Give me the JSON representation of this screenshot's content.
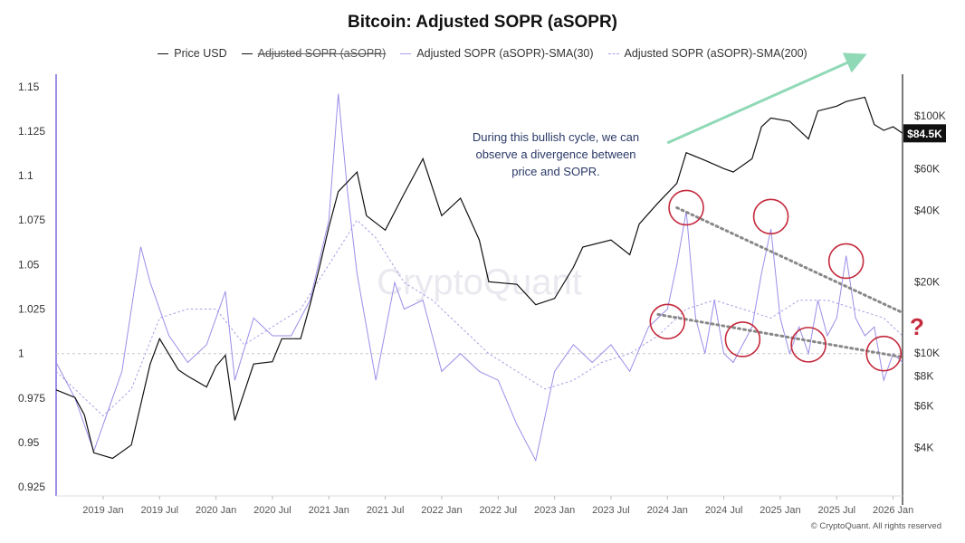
{
  "chart_data": {
    "type": "line",
    "title": "Bitcoin: Adjusted SOPR (aSOPR)",
    "legend": [
      {
        "name": "Price USD",
        "style": "solid-black",
        "struck": false
      },
      {
        "name": "Adjusted SOPR (aSOPR)",
        "style": "solid-black",
        "struck": true
      },
      {
        "name": "Adjusted SOPR (aSOPR)-SMA(30)",
        "style": "solid-lavender",
        "struck": false
      },
      {
        "name": "Adjusted SOPR (aSOPR)-SMA(200)",
        "style": "dashed-lavender",
        "struck": false
      }
    ],
    "x_ticks": [
      "2019 Jan",
      "2019 Jul",
      "2020 Jan",
      "2020 Jul",
      "2021 Jan",
      "2021 Jul",
      "2022 Jan",
      "2022 Jul",
      "2023 Jan",
      "2023 Jul",
      "2024 Jan",
      "2024 Jul",
      "2025 Jan",
      "2025 Jul",
      "2026 Jan"
    ],
    "x_range": [
      "2018-08",
      "2026-02"
    ],
    "y_left_ticks": [
      1.15,
      1.125,
      1.1,
      1.075,
      1.05,
      1.025,
      1,
      0.975,
      0.95,
      0.925
    ],
    "y_left_tick_labels": [
      "1.15",
      "1.125",
      "1.1",
      "1.075",
      "1.05",
      "1.025",
      "1",
      "0.975",
      "0.95",
      "0.925"
    ],
    "y_left_range": [
      0.92,
      1.157
    ],
    "y_right_ticks": [
      100000,
      60000,
      40000,
      20000,
      10000,
      8000,
      6000,
      4000
    ],
    "y_right_tick_labels": [
      "$100K",
      "$60K",
      "$40K",
      "$20K",
      "$10K",
      "$8K",
      "$6K",
      "$4K"
    ],
    "y_right_scale": "log",
    "y_right_range": [
      2500,
      150000
    ],
    "current_price_label": "$84.5K",
    "current_price": 84500,
    "reference_line": 1,
    "series": [
      {
        "name": "Price USD",
        "axis": "right",
        "color": "#111111",
        "x": [
          "2018-08",
          "2018-10",
          "2018-11",
          "2018-12",
          "2019-02",
          "2019-04",
          "2019-06",
          "2019-07",
          "2019-09",
          "2019-10",
          "2019-12",
          "2020-01",
          "2020-02",
          "2020-03",
          "2020-05",
          "2020-07",
          "2020-08",
          "2020-10",
          "2020-11",
          "2020-12",
          "2021-01",
          "2021-02",
          "2021-04",
          "2021-05",
          "2021-07",
          "2021-09",
          "2021-11",
          "2022-01",
          "2022-03",
          "2022-05",
          "2022-06",
          "2022-09",
          "2022-11",
          "2023-01",
          "2023-03",
          "2023-04",
          "2023-07",
          "2023-09",
          "2023-10",
          "2023-12",
          "2024-02",
          "2024-03",
          "2024-05",
          "2024-07",
          "2024-08",
          "2024-10",
          "2024-11",
          "2024-12",
          "2025-02",
          "2025-04",
          "2025-05",
          "2025-07",
          "2025-08",
          "2025-10",
          "2025-11",
          "2025-12",
          "2026-01",
          "2026-02"
        ],
        "values": [
          7000,
          6500,
          5500,
          3800,
          3600,
          4100,
          9000,
          11500,
          8500,
          8000,
          7200,
          8800,
          9800,
          5200,
          9000,
          9200,
          11500,
          11500,
          16000,
          23000,
          34000,
          48000,
          58000,
          38000,
          33000,
          47000,
          66000,
          38000,
          45000,
          30000,
          20000,
          19500,
          16000,
          17000,
          23000,
          28000,
          30000,
          26000,
          35000,
          43000,
          52000,
          70000,
          65000,
          60000,
          58000,
          66000,
          90000,
          98000,
          95000,
          80000,
          105000,
          110000,
          115000,
          120000,
          92000,
          87000,
          90000,
          84500
        ]
      },
      {
        "name": "Adjusted SOPR (aSOPR)-SMA(30)",
        "axis": "left",
        "color": "#9a8ee8",
        "x": [
          "2018-08",
          "2018-10",
          "2018-12",
          "2019-01",
          "2019-03",
          "2019-05",
          "2019-06",
          "2019-08",
          "2019-10",
          "2019-12",
          "2020-02",
          "2020-03",
          "2020-05",
          "2020-07",
          "2020-09",
          "2020-11",
          "2021-01",
          "2021-02",
          "2021-03",
          "2021-04",
          "2021-06",
          "2021-08",
          "2021-09",
          "2021-11",
          "2022-01",
          "2022-03",
          "2022-05",
          "2022-07",
          "2022-09",
          "2022-11",
          "2023-01",
          "2023-03",
          "2023-05",
          "2023-07",
          "2023-09",
          "2023-11",
          "2024-01",
          "2024-02",
          "2024-03",
          "2024-04",
          "2024-05",
          "2024-06",
          "2024-07",
          "2024-08",
          "2024-09",
          "2024-10",
          "2024-11",
          "2024-12",
          "2025-01",
          "2025-02",
          "2025-03",
          "2025-04",
          "2025-05",
          "2025-06",
          "2025-07",
          "2025-08",
          "2025-09",
          "2025-10",
          "2025-11",
          "2025-12",
          "2026-01",
          "2026-02"
        ],
        "values": [
          0.995,
          0.975,
          0.945,
          0.96,
          0.99,
          1.06,
          1.04,
          1.01,
          0.995,
          1.005,
          1.035,
          0.985,
          1.02,
          1.01,
          1.01,
          1.03,
          1.075,
          1.146,
          1.09,
          1.045,
          0.985,
          1.04,
          1.025,
          1.03,
          0.99,
          1.0,
          0.99,
          0.985,
          0.96,
          0.94,
          0.99,
          1.005,
          0.995,
          1.005,
          0.99,
          1.015,
          1.025,
          1.05,
          1.08,
          1.02,
          1.0,
          1.03,
          1.0,
          0.995,
          1.005,
          1.015,
          1.045,
          1.07,
          1.02,
          1.0,
          1.015,
          1.0,
          1.03,
          1.01,
          1.02,
          1.055,
          1.02,
          1.01,
          1.015,
          0.985,
          1.0,
          0.995
        ]
      },
      {
        "name": "Adjusted SOPR (aSOPR)-SMA(200)",
        "axis": "left",
        "color": "#a79fe6",
        "dashed": true,
        "x": [
          "2018-08",
          "2018-11",
          "2019-01",
          "2019-04",
          "2019-07",
          "2019-10",
          "2020-01",
          "2020-04",
          "2020-07",
          "2020-10",
          "2021-01",
          "2021-04",
          "2021-06",
          "2021-09",
          "2021-12",
          "2022-03",
          "2022-06",
          "2022-09",
          "2022-12",
          "2023-03",
          "2023-06",
          "2023-09",
          "2023-12",
          "2024-03",
          "2024-06",
          "2024-09",
          "2024-12",
          "2025-03",
          "2025-06",
          "2025-09",
          "2025-12",
          "2026-02"
        ],
        "values": [
          0.99,
          0.975,
          0.965,
          0.98,
          1.02,
          1.025,
          1.025,
          1.005,
          1.015,
          1.025,
          1.05,
          1.075,
          1.065,
          1.04,
          1.03,
          1.015,
          1.0,
          0.99,
          0.98,
          0.985,
          0.995,
          1.0,
          1.01,
          1.025,
          1.03,
          1.025,
          1.02,
          1.03,
          1.03,
          1.025,
          1.02,
          1.01
        ]
      }
    ],
    "annotations": {
      "text_lines": [
        "During this bullish cycle, we can",
        "observe a divergence between",
        "price and SOPR."
      ],
      "question_mark": "?",
      "watermark": "CryptoQuant",
      "price_arrow": {
        "from": [
          "2024-01",
          77000
        ],
        "to": [
          "2025-10",
          180000
        ]
      },
      "upper_trendline": {
        "from": [
          "2024-02",
          1.082
        ],
        "to": [
          "2026-02",
          1.023
        ]
      },
      "lower_trendline": {
        "from": [
          "2023-12",
          1.022
        ],
        "to": [
          "2026-02",
          0.998
        ]
      },
      "circles": [
        {
          "x": "2024-03",
          "y": 1.082
        },
        {
          "x": "2024-12",
          "y": 1.077
        },
        {
          "x": "2025-08",
          "y": 1.052
        },
        {
          "x": "2024-01",
          "y": 1.018
        },
        {
          "x": "2024-09",
          "y": 1.008
        },
        {
          "x": "2025-04",
          "y": 1.005
        },
        {
          "x": "2025-12",
          "y": 1.0
        }
      ]
    }
  },
  "footer": {
    "copyright": "© CryptoQuant. All rights reserved"
  }
}
